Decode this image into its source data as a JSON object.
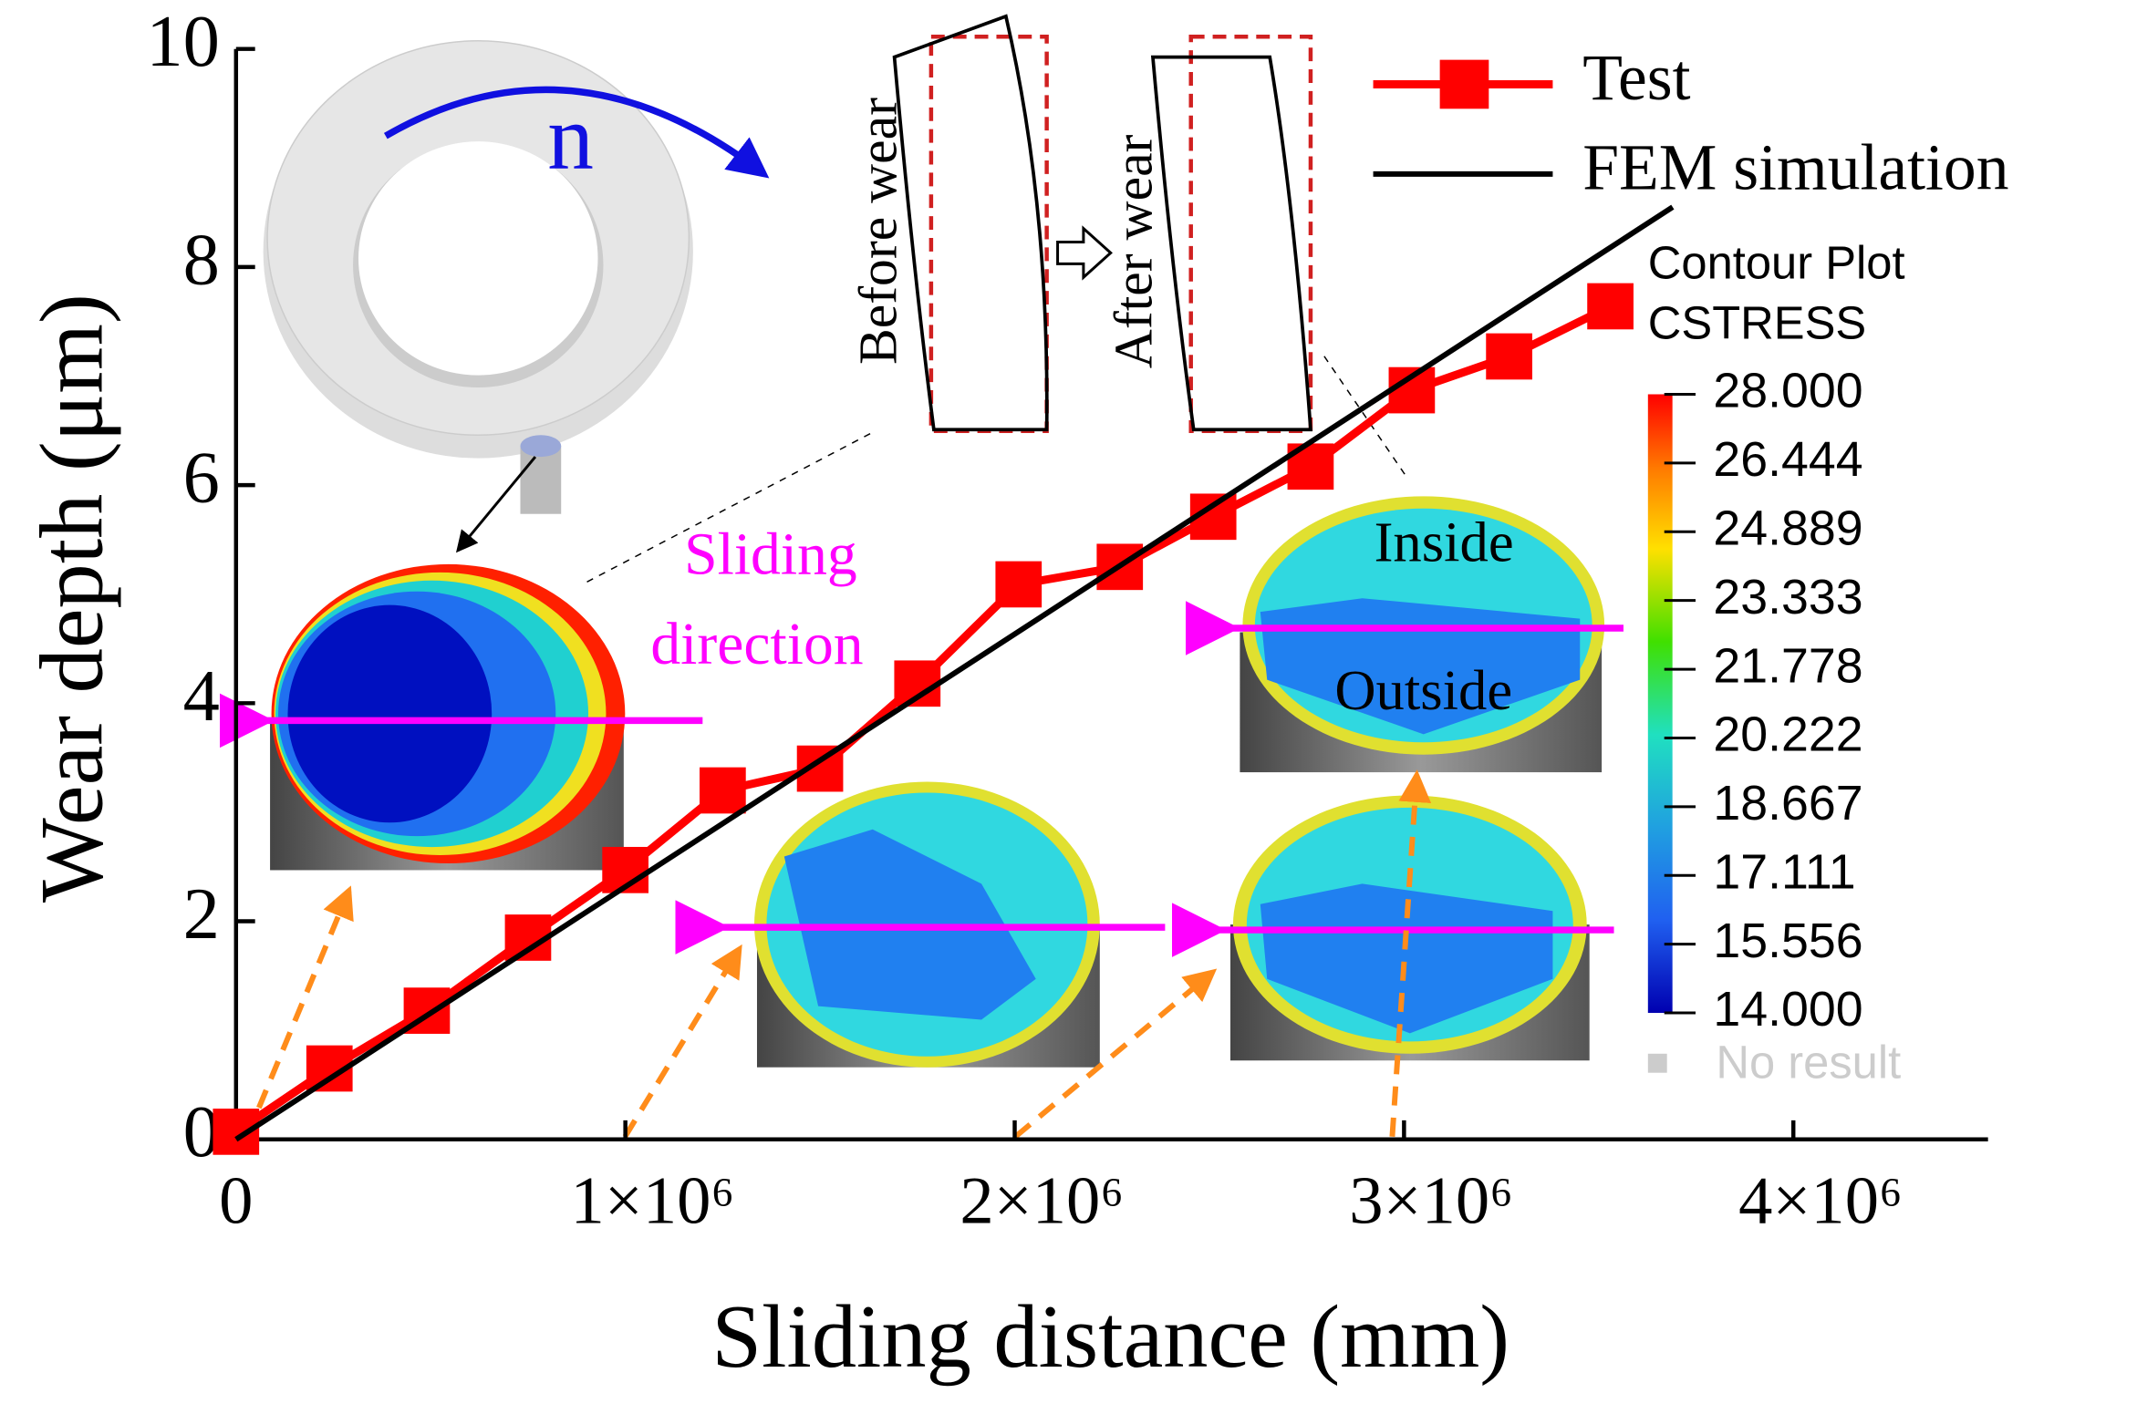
{
  "chart_data": {
    "type": "line",
    "x_label": "Sliding distance (mm)",
    "y_label": "Wear depth (μm)",
    "xlim": [
      0,
      4500000
    ],
    "ylim": [
      0,
      10
    ],
    "xticks": [
      0,
      {
        "value": 1000000,
        "label": "1×10⁶"
      },
      {
        "value": 2000000,
        "label": "2×10⁶"
      },
      {
        "value": 3000000,
        "label": "3×10⁶"
      },
      {
        "value": 4000000,
        "label": "4×10⁶"
      }
    ],
    "yticks": [
      0,
      2,
      4,
      6,
      8,
      10
    ],
    "legend": "upper right",
    "series": [
      {
        "name": "Test",
        "color": "#ff0000",
        "marker": "square",
        "x": [
          0,
          240000,
          490000,
          750000,
          1000000,
          1250000,
          1500000,
          1750000,
          2010000,
          2270000,
          2510000,
          2760000,
          3020000,
          3270000,
          3530000
        ],
        "values": [
          0.07,
          0.65,
          1.18,
          1.85,
          2.47,
          3.2,
          3.4,
          4.18,
          5.09,
          5.25,
          5.71,
          6.17,
          6.87,
          7.18,
          7.64
        ]
      },
      {
        "name": "FEM simulation",
        "color": "#000000",
        "x": [
          0,
          3690000
        ],
        "values": [
          0,
          8.55
        ]
      }
    ],
    "annotations": {
      "rotation": "n",
      "before": "Before wear",
      "after": "After wear",
      "sliding": [
        "Sliding",
        "direction"
      ],
      "inside": "Inside",
      "outside": "Outside",
      "contour_title": [
        "Contour Plot",
        "CSTRESS"
      ],
      "colorbar_labels": [
        "28.000",
        "26.444",
        "24.889",
        "23.333",
        "21.778",
        "20.222",
        "18.667",
        "17.111",
        "15.556",
        "14.000"
      ],
      "no_result": "No result"
    }
  }
}
